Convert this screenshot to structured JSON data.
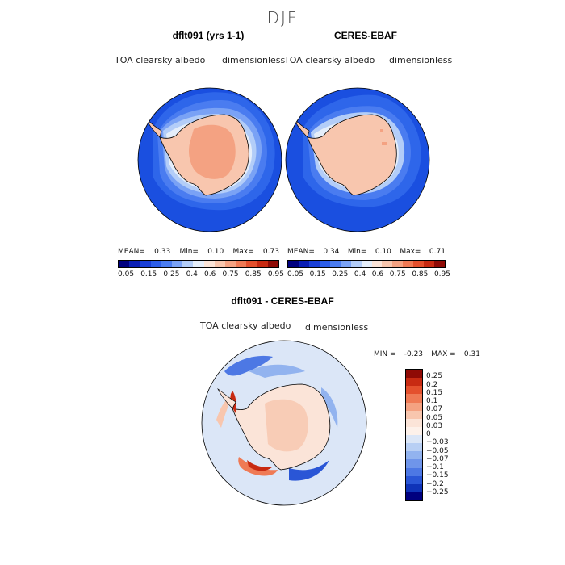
{
  "figure": {
    "season": "DJF"
  },
  "panels": [
    {
      "title": "dflt091 (yrs 1-1)",
      "variable": "TOA clearsky albedo",
      "units": "dimensionless",
      "stats": {
        "mean_label": "MEAN=",
        "mean": "0.33",
        "min_label": "Min=",
        "min": "0.10",
        "max_label": "Max=",
        "max": "0.73"
      }
    },
    {
      "title": "CERES-EBAF",
      "variable": "TOA clearsky albedo",
      "units": "dimensionless",
      "stats": {
        "mean_label": "MEAN=",
        "mean": "0.34",
        "min_label": "Min=",
        "min": "0.10",
        "max_label": "Max=",
        "max": "0.71"
      }
    }
  ],
  "colorbar_top": {
    "colors": [
      "#00007f",
      "#0a1eb4",
      "#1a3fd6",
      "#2d5ee8",
      "#4a7cf0",
      "#7aa2f5",
      "#b3cdf8",
      "#e5eefa",
      "#fbe4d8",
      "#f8c6ae",
      "#f4a282",
      "#ef7a55",
      "#e4502d",
      "#c82a12",
      "#8f0a05"
    ],
    "ticks": [
      "0.05",
      "0.15",
      "0.25",
      "0.4",
      "0.6",
      "0.75",
      "0.85",
      "0.95"
    ]
  },
  "diff_panel": {
    "title": "dflt091 - CERES-EBAF",
    "variable": "TOA clearsky albedo",
    "units": "dimensionless",
    "stats": {
      "min_label": "MIN =",
      "min": "-0.23",
      "max_label": "MAX =",
      "max": "0.31"
    }
  },
  "colorbar_diff": {
    "colors": [
      "#8f0a05",
      "#c82a12",
      "#e4502d",
      "#ef7a55",
      "#f4a282",
      "#f8c6ae",
      "#fbe4d8",
      "#fdf1ea",
      "#dbe6f7",
      "#b8cff4",
      "#92b3ef",
      "#6f95ea",
      "#4d78e4",
      "#2a56d6",
      "#0f33b8",
      "#00007f"
    ],
    "ticks": [
      "0.25",
      "0.2",
      "0.15",
      "0.1",
      "0.07",
      "0.05",
      "0.03",
      "0",
      "−0.03",
      "−0.05",
      "−0.07",
      "−0.1",
      "−0.15",
      "−0.2",
      "−0.25"
    ]
  }
}
